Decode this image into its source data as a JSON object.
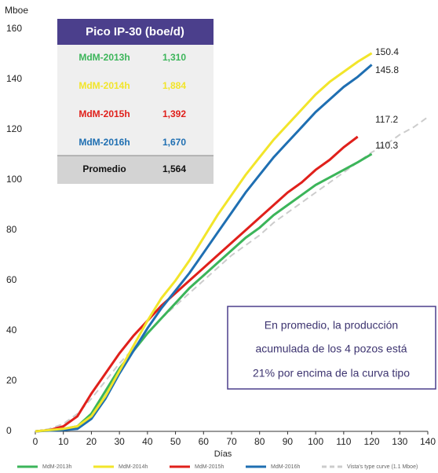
{
  "chart_data": {
    "type": "line",
    "y_label": "Mboe",
    "x_label": "Días",
    "x": [
      0,
      5,
      10,
      15,
      20,
      25,
      30,
      35,
      40,
      45,
      50,
      55,
      60,
      65,
      70,
      75,
      80,
      85,
      90,
      95,
      100,
      105,
      110,
      115,
      120,
      125,
      130,
      135,
      140
    ],
    "xlim": [
      0,
      140
    ],
    "xticks": [
      0,
      10,
      20,
      30,
      40,
      50,
      60,
      70,
      80,
      90,
      100,
      110,
      120,
      130,
      140
    ],
    "ylim": [
      0,
      160
    ],
    "yticks": [
      0,
      20,
      40,
      60,
      80,
      100,
      120,
      140,
      160
    ],
    "series": [
      {
        "name": "MdM-2013h",
        "color": "#3cb55a",
        "values": [
          0,
          0.5,
          1,
          2,
          7,
          16,
          25,
          32,
          39,
          45,
          51,
          57,
          62,
          67,
          72,
          77,
          81,
          86,
          90,
          94,
          98,
          101,
          104,
          107,
          110.3,
          null,
          null,
          null,
          null
        ]
      },
      {
        "name": "MdM-2014h",
        "color": "#f2e52a",
        "values": [
          0,
          0.5,
          1,
          2,
          6,
          14,
          24,
          34,
          44,
          53,
          60,
          68,
          77,
          86,
          94,
          102,
          109,
          116,
          122,
          128,
          134,
          139,
          143,
          147,
          150.4,
          null,
          null,
          null,
          null
        ]
      },
      {
        "name": "MdM-2015h",
        "color": "#e0201b",
        "values": [
          0,
          0.5,
          2,
          6,
          15,
          23,
          31,
          38,
          44,
          50,
          55,
          60,
          65,
          70,
          75,
          80,
          85,
          90,
          95,
          99,
          104,
          108,
          113,
          117.2,
          null,
          null,
          null,
          null,
          null
        ]
      },
      {
        "name": "MdM-2016h",
        "color": "#1f6fb2",
        "values": [
          0,
          0.3,
          0.5,
          1,
          5,
          13,
          23,
          32,
          41,
          49,
          56,
          63,
          71,
          79,
          87,
          95,
          102,
          109,
          115,
          121,
          127,
          132,
          137,
          141,
          145.8,
          null,
          null,
          null,
          null
        ]
      },
      {
        "name": "Vista's type curve (1.1 Mboe)",
        "color": "#cccccc",
        "dashed": true,
        "values": [
          0,
          1,
          3,
          7,
          13,
          20,
          27,
          33,
          39,
          45,
          50,
          55,
          60,
          65,
          70,
          74,
          78,
          83,
          87,
          91,
          95,
          99,
          103,
          107,
          111,
          114,
          118,
          121,
          125
        ]
      }
    ],
    "table": {
      "title": "Pico IP-30 (boe/d)",
      "values": [
        "1,310",
        "1,884",
        "1,392",
        "1,670"
      ],
      "total_label": "Promedio",
      "total_value": "1,564"
    },
    "annotation": [
      "En promedio, la producción",
      "acumulada de los 4 pozos está",
      "21% por encima de la curva tipo"
    ]
  }
}
